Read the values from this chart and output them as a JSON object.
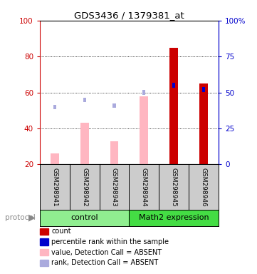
{
  "title": "GDS3436 / 1379381_at",
  "samples": [
    "GSM298941",
    "GSM298942",
    "GSM298943",
    "GSM298944",
    "GSM298945",
    "GSM298946"
  ],
  "value_bars": [
    26,
    43,
    33,
    58,
    85,
    65
  ],
  "value_bar_color_absent": "#FFB6C1",
  "value_bar_color_present": "#CC0000",
  "value_absent": [
    true,
    true,
    true,
    true,
    false,
    false
  ],
  "rank_bars": [
    40,
    45,
    41,
    50,
    55,
    52
  ],
  "rank_bar_color_absent": "#AAAADD",
  "rank_bar_color_present": "#0000CC",
  "rank_absent": [
    true,
    true,
    true,
    true,
    false,
    false
  ],
  "bar_bottom": 20,
  "ylim_left": [
    20,
    100
  ],
  "ylim_right": [
    0,
    100
  ],
  "yticks_left": [
    20,
    40,
    60,
    80,
    100
  ],
  "ytick_labels_left": [
    "20",
    "40",
    "60",
    "80",
    "100"
  ],
  "yticks_right": [
    0,
    25,
    50,
    75,
    100
  ],
  "ytick_labels_right": [
    "0",
    "25",
    "50",
    "75",
    "100%"
  ],
  "left_axis_color": "#CC0000",
  "right_axis_color": "#0000CC",
  "bg_color": "#FFFFFF",
  "sample_bg_color": "#CCCCCC",
  "group_control_color": "#90EE90",
  "group_math2_color": "#44DD44",
  "legend_items": [
    {
      "label": "count",
      "color": "#CC0000"
    },
    {
      "label": "percentile rank within the sample",
      "color": "#0000CC"
    },
    {
      "label": "value, Detection Call = ABSENT",
      "color": "#FFB6C1"
    },
    {
      "label": "rank, Detection Call = ABSENT",
      "color": "#AAAADD"
    }
  ]
}
